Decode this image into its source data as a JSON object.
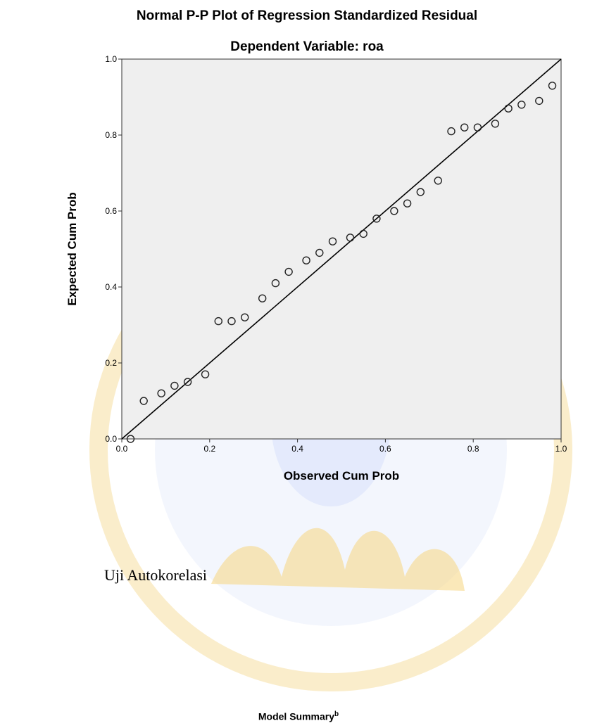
{
  "chart_data": {
    "type": "scatter",
    "title": "Normal P-P Plot of Regression Standardized Residual",
    "subtitle": "Dependent Variable: roa",
    "xlabel": "Observed Cum Prob",
    "ylabel": "Expected Cum Prob",
    "xlim": [
      0,
      1
    ],
    "ylim": [
      0,
      1
    ],
    "xticks": [
      "0.0",
      "0.2",
      "0.4",
      "0.6",
      "0.8",
      "1.0"
    ],
    "yticks": [
      "0.0",
      "0.2",
      "0.4",
      "0.6",
      "0.8",
      "1.0"
    ],
    "grid": false,
    "reference_line": {
      "from": [
        0,
        0
      ],
      "to": [
        1,
        1
      ]
    },
    "points": [
      {
        "x": 0.02,
        "y": 0.0
      },
      {
        "x": 0.05,
        "y": 0.1
      },
      {
        "x": 0.09,
        "y": 0.12
      },
      {
        "x": 0.12,
        "y": 0.14
      },
      {
        "x": 0.15,
        "y": 0.15
      },
      {
        "x": 0.19,
        "y": 0.17
      },
      {
        "x": 0.22,
        "y": 0.31
      },
      {
        "x": 0.25,
        "y": 0.31
      },
      {
        "x": 0.28,
        "y": 0.32
      },
      {
        "x": 0.32,
        "y": 0.37
      },
      {
        "x": 0.35,
        "y": 0.41
      },
      {
        "x": 0.38,
        "y": 0.44
      },
      {
        "x": 0.42,
        "y": 0.47
      },
      {
        "x": 0.45,
        "y": 0.49
      },
      {
        "x": 0.48,
        "y": 0.52
      },
      {
        "x": 0.52,
        "y": 0.53
      },
      {
        "x": 0.55,
        "y": 0.54
      },
      {
        "x": 0.58,
        "y": 0.58
      },
      {
        "x": 0.62,
        "y": 0.6
      },
      {
        "x": 0.65,
        "y": 0.62
      },
      {
        "x": 0.68,
        "y": 0.65
      },
      {
        "x": 0.72,
        "y": 0.68
      },
      {
        "x": 0.75,
        "y": 0.81
      },
      {
        "x": 0.78,
        "y": 0.82
      },
      {
        "x": 0.81,
        "y": 0.82
      },
      {
        "x": 0.85,
        "y": 0.83
      },
      {
        "x": 0.88,
        "y": 0.87
      },
      {
        "x": 0.91,
        "y": 0.88
      },
      {
        "x": 0.95,
        "y": 0.89
      },
      {
        "x": 0.98,
        "y": 0.93
      }
    ]
  },
  "document": {
    "section_heading": "Uji Autokorelasi",
    "table_title": "Model Summary",
    "table_title_superscript": "b"
  },
  "colors": {
    "plot_background": "#efefef",
    "axis": "#333333",
    "line": "#000000",
    "watermark": "#f0c860",
    "watermark_blue": "#c7d3f0"
  }
}
